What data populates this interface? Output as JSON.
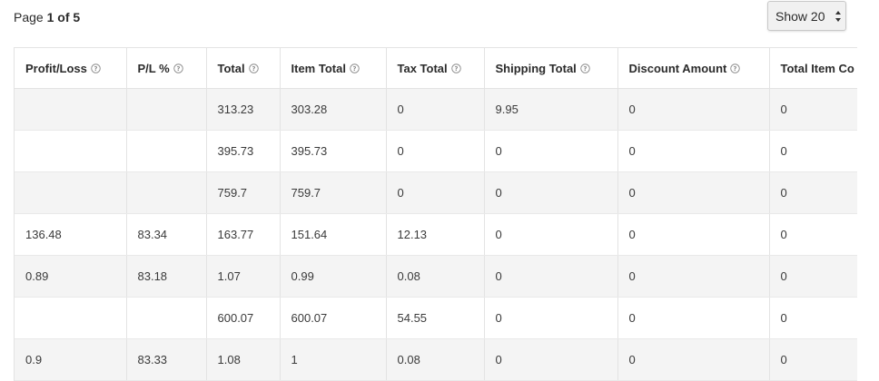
{
  "pagination": {
    "prefix": "Page",
    "current_of_total": "1 of 5"
  },
  "page_size_select": {
    "selected": "Show 20"
  },
  "table": {
    "columns": [
      {
        "label": "Profit/Loss",
        "help_icon": "question-circle-icon"
      },
      {
        "label": "P/L %",
        "help_icon": "question-circle-icon"
      },
      {
        "label": "Total",
        "help_icon": "question-circle-icon"
      },
      {
        "label": "Item Total",
        "help_icon": "question-circle-icon"
      },
      {
        "label": "Tax Total",
        "help_icon": "question-circle-icon"
      },
      {
        "label": "Shipping Total",
        "help_icon": "question-circle-icon"
      },
      {
        "label": "Discount Amount",
        "help_icon": "question-circle-icon"
      },
      {
        "label": "Total Item Co",
        "help_icon": ""
      }
    ],
    "rows": [
      [
        "",
        "",
        "313.23",
        "303.28",
        "0",
        "9.95",
        "0",
        "0"
      ],
      [
        "",
        "",
        "395.73",
        "395.73",
        "0",
        "0",
        "0",
        "0"
      ],
      [
        "",
        "",
        "759.7",
        "759.7",
        "0",
        "0",
        "0",
        "0"
      ],
      [
        "136.48",
        "83.34",
        "163.77",
        "151.64",
        "12.13",
        "0",
        "0",
        "0"
      ],
      [
        "0.89",
        "83.18",
        "1.07",
        "0.99",
        "0.08",
        "0",
        "0",
        "0"
      ],
      [
        "",
        "",
        "600.07",
        "600.07",
        "54.55",
        "0",
        "0",
        "0"
      ],
      [
        "0.9",
        "83.33",
        "1.08",
        "1",
        "0.08",
        "0",
        "0",
        "0"
      ]
    ]
  }
}
